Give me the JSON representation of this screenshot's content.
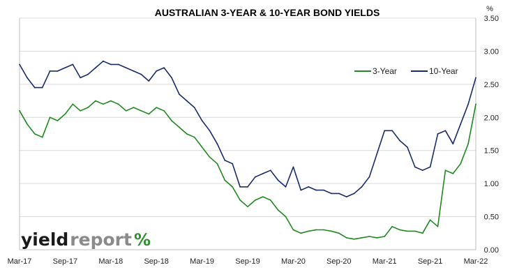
{
  "chart_data": {
    "type": "line",
    "title": "AUSTRALIAN 3-YEAR & 10-YEAR BOND YIELDS",
    "unit_label": "%",
    "x_tick_labels": [
      "Mar-17",
      "Sep-17",
      "Mar-18",
      "Sep-18",
      "Mar-19",
      "Sep-19",
      "Mar-20",
      "Sep-20",
      "Mar-21",
      "Sep-21",
      "Mar-22"
    ],
    "x_range": [
      "2017-03",
      "2022-03"
    ],
    "y_range": [
      0,
      3.5
    ],
    "y_tick_labels": [
      "0.00",
      "0.50",
      "1.00",
      "1.50",
      "2.00",
      "2.50",
      "3.00",
      "3.50"
    ],
    "grid": {
      "horizontal": true,
      "vertical": false
    },
    "legend": {
      "placement": "top-right"
    },
    "series": [
      {
        "name": "3-Year",
        "color": "#1e8a1e",
        "x": [
          "2017-03",
          "2017-04",
          "2017-05",
          "2017-06",
          "2017-07",
          "2017-08",
          "2017-09",
          "2017-10",
          "2017-11",
          "2017-12",
          "2018-01",
          "2018-02",
          "2018-03",
          "2018-04",
          "2018-05",
          "2018-06",
          "2018-07",
          "2018-08",
          "2018-09",
          "2018-10",
          "2018-11",
          "2018-12",
          "2019-01",
          "2019-02",
          "2019-03",
          "2019-04",
          "2019-05",
          "2019-06",
          "2019-07",
          "2019-08",
          "2019-09",
          "2019-10",
          "2019-11",
          "2019-12",
          "2020-01",
          "2020-02",
          "2020-03",
          "2020-04",
          "2020-05",
          "2020-06",
          "2020-07",
          "2020-08",
          "2020-09",
          "2020-10",
          "2020-11",
          "2020-12",
          "2021-01",
          "2021-02",
          "2021-03",
          "2021-04",
          "2021-05",
          "2021-06",
          "2021-07",
          "2021-08",
          "2021-09",
          "2021-10",
          "2021-11",
          "2021-12",
          "2022-01",
          "2022-02",
          "2022-03"
        ],
        "values": [
          2.1,
          1.9,
          1.75,
          1.7,
          2.0,
          1.95,
          2.05,
          2.2,
          2.1,
          2.15,
          2.25,
          2.2,
          2.25,
          2.2,
          2.1,
          2.15,
          2.1,
          2.05,
          2.15,
          2.1,
          1.95,
          1.85,
          1.75,
          1.7,
          1.55,
          1.4,
          1.3,
          1.05,
          0.95,
          0.75,
          0.65,
          0.75,
          0.8,
          0.75,
          0.6,
          0.5,
          0.3,
          0.25,
          0.28,
          0.3,
          0.3,
          0.28,
          0.25,
          0.18,
          0.16,
          0.18,
          0.2,
          0.18,
          0.2,
          0.35,
          0.3,
          0.28,
          0.28,
          0.25,
          0.45,
          0.35,
          1.2,
          1.15,
          1.3,
          1.6,
          2.2
        ]
      },
      {
        "name": "10-Year",
        "color": "#1a2b6a",
        "x": [
          "2017-03",
          "2017-04",
          "2017-05",
          "2017-06",
          "2017-07",
          "2017-08",
          "2017-09",
          "2017-10",
          "2017-11",
          "2017-12",
          "2018-01",
          "2018-02",
          "2018-03",
          "2018-04",
          "2018-05",
          "2018-06",
          "2018-07",
          "2018-08",
          "2018-09",
          "2018-10",
          "2018-11",
          "2018-12",
          "2019-01",
          "2019-02",
          "2019-03",
          "2019-04",
          "2019-05",
          "2019-06",
          "2019-07",
          "2019-08",
          "2019-09",
          "2019-10",
          "2019-11",
          "2019-12",
          "2020-01",
          "2020-02",
          "2020-03",
          "2020-04",
          "2020-05",
          "2020-06",
          "2020-07",
          "2020-08",
          "2020-09",
          "2020-10",
          "2020-11",
          "2020-12",
          "2021-01",
          "2021-02",
          "2021-03",
          "2021-04",
          "2021-05",
          "2021-06",
          "2021-07",
          "2021-08",
          "2021-09",
          "2021-10",
          "2021-11",
          "2021-12",
          "2022-01",
          "2022-02",
          "2022-03"
        ],
        "values": [
          2.8,
          2.6,
          2.45,
          2.45,
          2.7,
          2.7,
          2.75,
          2.8,
          2.6,
          2.65,
          2.75,
          2.85,
          2.8,
          2.8,
          2.75,
          2.7,
          2.65,
          2.55,
          2.7,
          2.75,
          2.6,
          2.35,
          2.25,
          2.15,
          1.95,
          1.8,
          1.6,
          1.35,
          1.3,
          0.95,
          0.95,
          1.1,
          1.15,
          1.2,
          1.05,
          0.95,
          1.25,
          0.9,
          0.95,
          0.9,
          0.9,
          0.85,
          0.85,
          0.8,
          0.85,
          0.95,
          1.1,
          1.45,
          1.8,
          1.8,
          1.65,
          1.55,
          1.25,
          1.2,
          1.25,
          1.75,
          1.8,
          1.6,
          1.9,
          2.2,
          2.6
        ]
      }
    ]
  },
  "branding": {
    "logo_text_a": "yield",
    "logo_text_b": "report",
    "logo_text_c": "%"
  }
}
